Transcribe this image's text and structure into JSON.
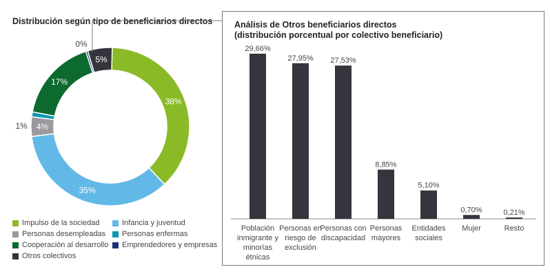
{
  "chart_data": [
    {
      "type": "pie",
      "title": "Distribución según tipo de beneficiarios directos",
      "slices": [
        {
          "label": "Impulso de la sociedad",
          "value": 38,
          "display": "38%",
          "color": "#8aba26"
        },
        {
          "label": "Infancia y juventud",
          "value": 35,
          "display": "35%",
          "color": "#62b9e8"
        },
        {
          "label": "Personas desempleadas",
          "value": 4,
          "display": "4%",
          "color": "#9a9a9e"
        },
        {
          "label": "Personas enfermas",
          "value": 1,
          "display": "1%",
          "color": "#0c97b3"
        },
        {
          "label": "Cooperación al desarrollo",
          "value": 17,
          "display": "17%",
          "color": "#0c6a2e"
        },
        {
          "label": "Emprendedores y empresas",
          "value": 0,
          "display": "0%",
          "color": "#1c2f78"
        },
        {
          "label": "Otros colectivos",
          "value": 5,
          "display": "5%",
          "color": "#35353d"
        }
      ]
    },
    {
      "type": "bar",
      "title": "Análisis de Otros beneficiarios directos",
      "subtitle": "(distribución porcentual por colectivo beneficiario)",
      "categories": [
        "Población inmigrante y minorías étnicas",
        "Personas en riesgo de exclusión",
        "Personas con discapacidad",
        "Personas mayores",
        "Entidades sociales",
        "Mujer",
        "Resto"
      ],
      "values": [
        29.66,
        27.95,
        27.53,
        8.85,
        5.1,
        0.7,
        0.21
      ],
      "labels": [
        "29,66%",
        "27,95%",
        "27,53%",
        "8,85%",
        "5,10%",
        "0,70%",
        "0,21%"
      ],
      "color": "#35353d",
      "ylim": [
        0,
        30
      ]
    }
  ]
}
